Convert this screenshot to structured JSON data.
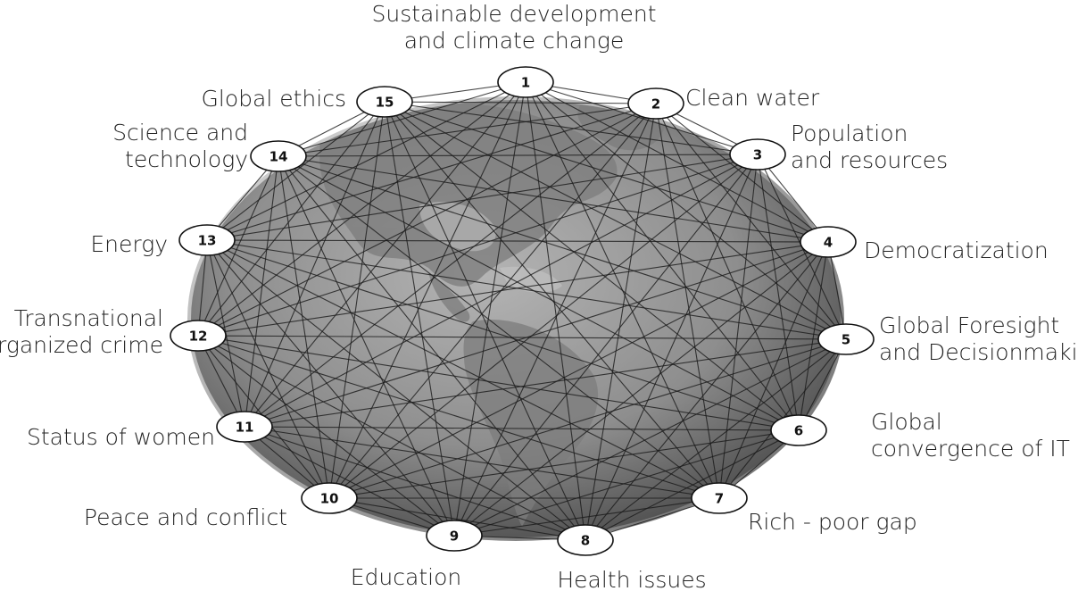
{
  "diagram": {
    "nodes": [
      {
        "id": 1,
        "number": "1",
        "label": [
          "Sustainable development",
          "and climate change"
        ]
      },
      {
        "id": 2,
        "number": "2",
        "label": [
          "Clean water"
        ]
      },
      {
        "id": 3,
        "number": "3",
        "label": [
          "Population",
          "and resources"
        ]
      },
      {
        "id": 4,
        "number": "4",
        "label": [
          "Democratization"
        ]
      },
      {
        "id": 5,
        "number": "5",
        "label": [
          "Global Foresight",
          "and Decisionmaking"
        ]
      },
      {
        "id": 6,
        "number": "6",
        "label": [
          "Global",
          "convergence of IT"
        ]
      },
      {
        "id": 7,
        "number": "7",
        "label": [
          "Rich - poor gap"
        ]
      },
      {
        "id": 8,
        "number": "8",
        "label": [
          "Health issues"
        ]
      },
      {
        "id": 9,
        "number": "9",
        "label": [
          "Education"
        ]
      },
      {
        "id": 10,
        "number": "10",
        "label": [
          "Peace and conflict"
        ]
      },
      {
        "id": 11,
        "number": "11",
        "label": [
          "Status of women"
        ]
      },
      {
        "id": 12,
        "number": "12",
        "label": [
          "Transnational",
          "organized crime"
        ]
      },
      {
        "id": 13,
        "number": "13",
        "label": [
          "Energy"
        ]
      },
      {
        "id": 14,
        "number": "14",
        "label": [
          "Science and",
          "technology"
        ]
      },
      {
        "id": 15,
        "number": "15",
        "label": [
          "Global ethics"
        ]
      }
    ],
    "connections": "all-to-all",
    "background": "globe-americas",
    "colors": {
      "globe_light": "#a8a8a8",
      "globe_dark": "#4a4a4a",
      "land": "#8a8a8a",
      "line": "#1a1a1a"
    }
  }
}
